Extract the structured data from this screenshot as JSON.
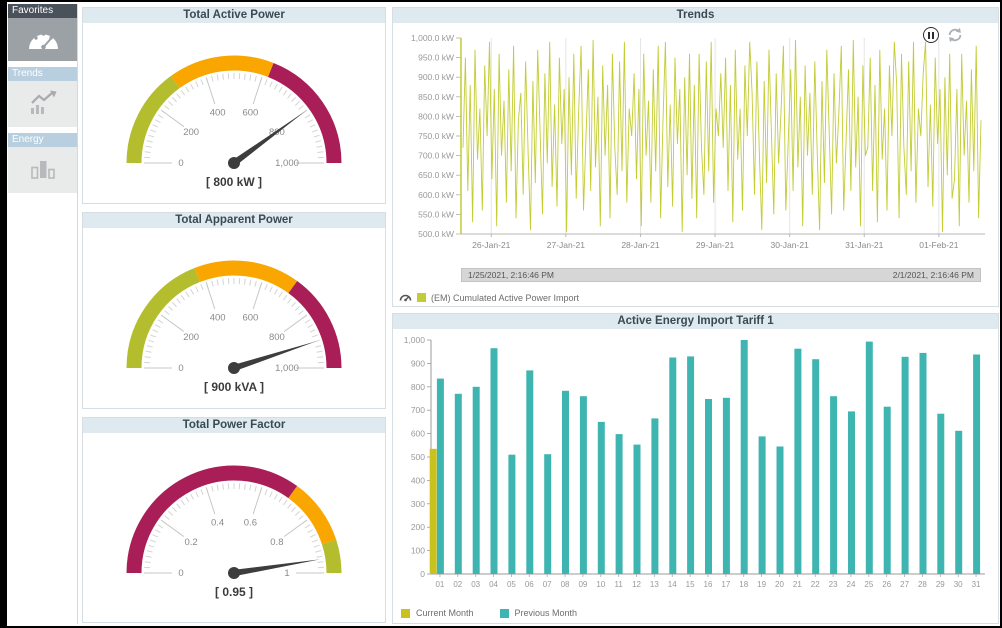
{
  "sidebar": {
    "items": [
      {
        "label": "Favorites",
        "icon": "gauge-icon",
        "selected": true
      },
      {
        "label": "Trends",
        "icon": "trend-chart-icon",
        "selected": false
      },
      {
        "label": "Energy",
        "icon": "energy-bars-icon",
        "selected": false
      }
    ]
  },
  "colors": {
    "chartreuse": "#b4bd2e",
    "trend_line": "#c3cc33",
    "orange": "#f9a600",
    "crimson": "#aa1e57",
    "teal": "#3fb5b1",
    "current_month_yellow": "#c9c21e",
    "title_bar": "#dfe9f0"
  },
  "gauges": [
    {
      "title": "Total Active Power",
      "min": 0,
      "max": 1000,
      "value": 800,
      "value_label": "[ 800 kW ]",
      "segments": [
        {
          "from": 0,
          "to": 300,
          "color": "#b4bd2e"
        },
        {
          "from": 300,
          "to": 620,
          "color": "#f9a600"
        },
        {
          "from": 620,
          "to": 1000,
          "color": "#aa1e57"
        }
      ],
      "ticks": [
        {
          "v": 0,
          "t": "0"
        },
        {
          "v": 200,
          "t": "200"
        },
        {
          "v": 400,
          "t": "400"
        },
        {
          "v": 600,
          "t": "600"
        },
        {
          "v": 800,
          "t": "800"
        },
        {
          "v": 1000,
          "t": "1,000"
        }
      ]
    },
    {
      "title": "Total Apparent Power",
      "min": 0,
      "max": 1000,
      "value": 900,
      "value_label": "[ 900 kVA ]",
      "segments": [
        {
          "from": 0,
          "to": 380,
          "color": "#b4bd2e"
        },
        {
          "from": 380,
          "to": 700,
          "color": "#f9a600"
        },
        {
          "from": 700,
          "to": 1000,
          "color": "#aa1e57"
        }
      ],
      "ticks": [
        {
          "v": 0,
          "t": "0"
        },
        {
          "v": 200,
          "t": "200"
        },
        {
          "v": 400,
          "t": "400"
        },
        {
          "v": 600,
          "t": "600"
        },
        {
          "v": 800,
          "t": "800"
        },
        {
          "v": 1000,
          "t": "1,000"
        }
      ]
    },
    {
      "title": "Total Power Factor",
      "min": 0,
      "max": 1,
      "value": 0.95,
      "value_label": "[ 0.95 ]",
      "segments": [
        {
          "from": 0,
          "to": 0.7,
          "color": "#aa1e57"
        },
        {
          "from": 0.7,
          "to": 0.9,
          "color": "#f9a600"
        },
        {
          "from": 0.9,
          "to": 1,
          "color": "#b4bd2e"
        }
      ],
      "ticks": [
        {
          "v": 0,
          "t": "0"
        },
        {
          "v": 0.2,
          "t": "0.2"
        },
        {
          "v": 0.4,
          "t": "0.4"
        },
        {
          "v": 0.6,
          "t": "0.6"
        },
        {
          "v": 0.8,
          "t": "0.8"
        },
        {
          "v": 1,
          "t": "1"
        }
      ]
    }
  ],
  "trends": {
    "title": "Trends",
    "toolbar_icons": [
      "pause-icon",
      "refresh-icon"
    ],
    "range_start": "1/25/2021, 2:16:46 PM",
    "range_end": "2/1/2021, 2:16:46 PM",
    "legend_label": "(EM) Cumulated Active Power Import"
  },
  "bars": {
    "title": "Active Energy Import Tariff 1",
    "legend_current": "Current Month",
    "legend_previous": "Previous Month"
  },
  "chart_data": [
    {
      "type": "line",
      "title": "Trends",
      "ylim": [
        500,
        1000
      ],
      "y_ticks": [
        "1,000.0 kW",
        "950.0 kW",
        "900.0 kW",
        "850.0 kW",
        "800.0 kW",
        "750.0 kW",
        "700.0 kW",
        "650.0 kW",
        "600.0 kW",
        "550.0 kW",
        "500.0 kW"
      ],
      "x_ticks": [
        "26-Jan-21",
        "27-Jan-21",
        "28-Jan-21",
        "29-Jan-21",
        "30-Jan-21",
        "31-Jan-21",
        "01-Feb-21"
      ],
      "x_range": [
        "1/25/2021, 2:16:46 PM",
        "2/1/2021, 2:16:46 PM"
      ],
      "grid": "vertical",
      "legend_position": "bottom",
      "series": [
        {
          "name": "(EM) Cumulated Active Power Import",
          "color": "#c3cc33",
          "values": [
            720,
            950,
            610,
            880,
            530,
            970,
            690,
            820,
            560,
            930,
            750,
            990,
            640,
            870,
            520,
            960,
            700,
            840,
            580,
            920,
            660,
            980,
            540,
            790,
            860,
            600,
            940,
            710,
            510,
            890,
            630,
            970,
            760,
            550,
            910,
            680,
            990,
            620,
            830,
            570,
            950,
            730,
            870,
            505,
            900,
            650,
            960,
            590,
            810,
            980,
            560,
            740,
            920,
            610,
            995,
            670,
            850,
            520,
            930,
            700,
            880,
            540,
            960,
            720,
            600,
            940,
            660,
            990,
            580,
            820,
            750,
            910,
            640,
            870,
            520,
            960,
            700,
            840,
            580,
            920,
            660,
            980,
            540,
            790,
            990,
            620,
            830,
            570,
            950,
            730,
            870,
            505,
            900,
            650,
            960,
            590,
            880,
            540,
            960,
            720,
            600,
            940,
            660,
            990,
            580,
            820,
            750,
            910,
            720,
            950,
            610,
            880,
            530,
            970,
            690,
            820,
            560,
            930,
            750,
            990,
            860,
            600,
            940,
            710,
            510,
            890,
            630,
            970,
            760,
            550,
            910,
            680,
            810,
            980,
            560,
            740,
            920,
            610,
            995,
            670,
            850,
            520,
            930,
            700,
            860,
            600,
            940,
            710,
            510,
            890,
            630,
            970,
            760,
            550,
            910,
            680,
            810,
            980,
            560,
            740,
            920,
            610,
            995,
            670,
            850,
            520,
            930,
            700,
            720,
            950,
            610,
            880,
            530,
            970,
            690,
            820,
            560,
            930,
            750,
            990,
            880,
            540,
            960,
            720,
            600,
            940,
            660,
            990,
            580,
            820,
            750,
            910,
            990,
            620,
            830,
            570,
            950,
            730,
            870,
            505,
            900,
            650,
            960,
            590,
            640,
            870,
            520,
            960,
            700,
            840,
            580,
            920,
            660,
            980,
            540,
            790
          ]
        }
      ]
    },
    {
      "type": "bar",
      "title": "Active Energy Import Tariff 1",
      "ylim": [
        0,
        1000
      ],
      "y_ticks": [
        "1,000",
        "900",
        "800",
        "700",
        "600",
        "500",
        "400",
        "300",
        "200",
        "100",
        "0"
      ],
      "categories": [
        "01",
        "02",
        "03",
        "04",
        "05",
        "06",
        "07",
        "08",
        "09",
        "10",
        "11",
        "12",
        "13",
        "14",
        "15",
        "16",
        "17",
        "18",
        "19",
        "20",
        "21",
        "22",
        "23",
        "24",
        "25",
        "26",
        "27",
        "28",
        "29",
        "30",
        "31"
      ],
      "legend_position": "bottom",
      "series": [
        {
          "name": "Current Month",
          "color": "#c9c21e",
          "values": [
            535
          ]
        },
        {
          "name": "Previous Month",
          "color": "#3fb5b1",
          "values": [
            835,
            770,
            800,
            965,
            510,
            870,
            512,
            783,
            760,
            650,
            598,
            553,
            665,
            925,
            930,
            748,
            753,
            1000,
            588,
            545,
            963,
            918,
            760,
            695,
            993,
            715,
            928,
            945,
            685,
            612,
            938
          ]
        }
      ]
    }
  ]
}
